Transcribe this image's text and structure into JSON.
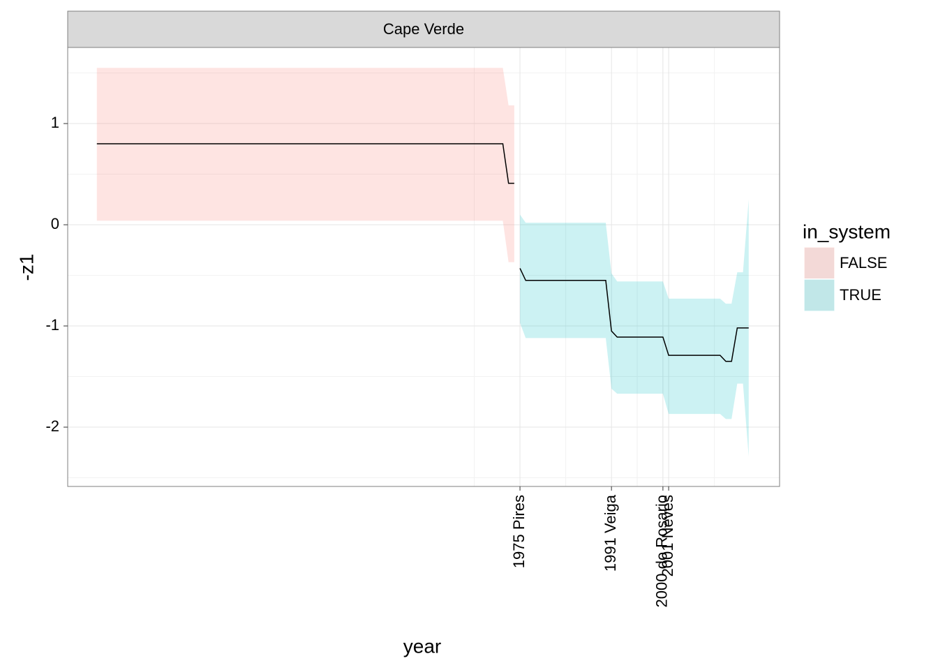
{
  "chart_data": {
    "type": "line",
    "facet": "Cape Verde",
    "x_label": "year",
    "y_label": "-z1",
    "legend_title": "in_system",
    "legend_position": "right",
    "grid": true,
    "line_color": "#000000",
    "ribbon_alpha": 0.2,
    "xlim": [
      1895.9,
      2020.4
    ],
    "ylim": [
      -2.586,
      1.752
    ],
    "xticks": [
      {
        "value": 1975,
        "label": "1975 Pires"
      },
      {
        "value": 1991,
        "label": "1991 Veiga"
      },
      {
        "value": 2000,
        "label": "2000 do Rosario"
      },
      {
        "value": 2001,
        "label": "2001 Neves"
      }
    ],
    "minor_xticks": [
      1967,
      1983,
      1995.5,
      2009
    ],
    "yticks": [
      -2,
      -1,
      0,
      1
    ],
    "minor_yticks": [
      -2.5,
      -1.5,
      -0.5,
      0.5,
      1.5
    ],
    "series": [
      {
        "name": "FALSE",
        "color": "#F8766D",
        "x": [
          1901,
          1972,
          1973,
          1974
        ],
        "values": [
          0.8,
          0.8,
          0.41,
          0.41
        ],
        "upper": [
          1.55,
          1.55,
          1.18,
          1.18
        ],
        "lower": [
          0.04,
          0.04,
          -0.37,
          -0.37
        ]
      },
      {
        "name": "TRUE",
        "color": "#00BFC4",
        "x": [
          1975,
          1976,
          1990,
          1991,
          1992,
          2000,
          2001,
          2010,
          2011,
          2012,
          2013,
          2014,
          2015
        ],
        "values": [
          -0.43,
          -0.55,
          -0.55,
          -1.05,
          -1.11,
          -1.11,
          -1.29,
          -1.29,
          -1.35,
          -1.35,
          -1.02,
          -1.02,
          -1.02
        ],
        "upper": [
          0.1,
          0.02,
          0.02,
          -0.48,
          -0.56,
          -0.56,
          -0.73,
          -0.73,
          -0.78,
          -0.78,
          -0.47,
          -0.47,
          0.25
        ],
        "lower": [
          -0.97,
          -1.12,
          -1.12,
          -1.62,
          -1.67,
          -1.67,
          -1.87,
          -1.87,
          -1.92,
          -1.92,
          -1.57,
          -1.57,
          -2.29
        ]
      }
    ]
  }
}
